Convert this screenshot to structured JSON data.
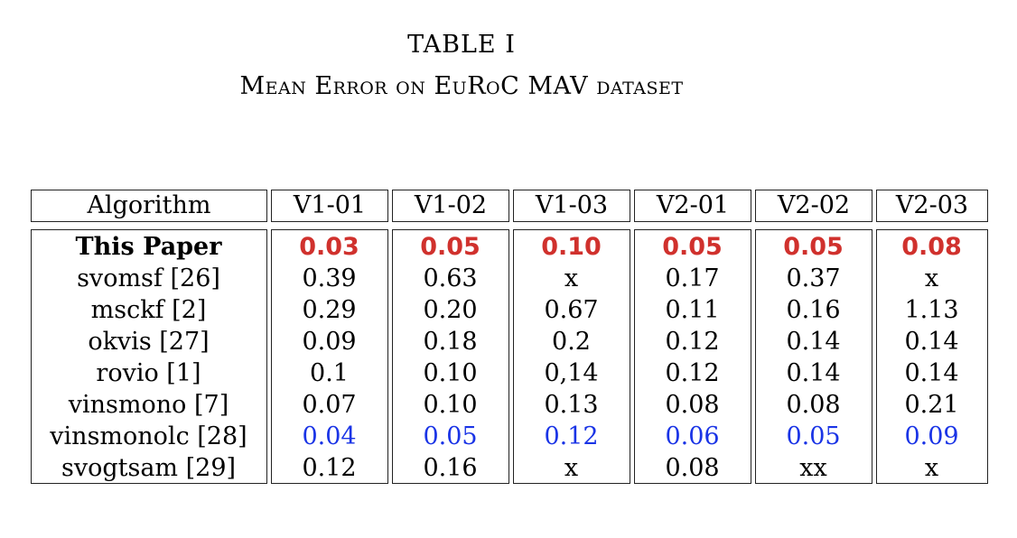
{
  "caption": {
    "label": "TABLE I",
    "title": "Mean Error on EuRoC MAV dataset"
  },
  "table": {
    "columns": [
      "Algorithm",
      "V1-01",
      "V1-02",
      "V1-03",
      "V2-01",
      "V2-02",
      "V2-03"
    ],
    "rows": [
      {
        "name": "This Paper",
        "values": [
          "0.03",
          "0.05",
          "0.10",
          "0.05",
          "0.05",
          "0.08"
        ],
        "style": "best"
      },
      {
        "name": "svomsf [26]",
        "values": [
          "0.39",
          "0.63",
          "x",
          "0.17",
          "0.37",
          "x"
        ],
        "style": "normal"
      },
      {
        "name": "msckf [2]",
        "values": [
          "0.29",
          "0.20",
          "0.67",
          "0.11",
          "0.16",
          "1.13"
        ],
        "style": "normal"
      },
      {
        "name": "okvis [27]",
        "values": [
          "0.09",
          "0.18",
          "0.2",
          "0.12",
          "0.14",
          "0.14"
        ],
        "style": "normal"
      },
      {
        "name": "rovio [1]",
        "values": [
          "0.1",
          "0.10",
          "0,14",
          "0.12",
          "0.14",
          "0.14"
        ],
        "style": "normal"
      },
      {
        "name": "vinsmono [7]",
        "values": [
          "0.07",
          "0.10",
          "0.13",
          "0.08",
          "0.08",
          "0.21"
        ],
        "style": "normal"
      },
      {
        "name": "vinsmonolc [28]",
        "values": [
          "0.04",
          "0.05",
          "0.12",
          "0.06",
          "0.05",
          "0.09"
        ],
        "style": "second"
      },
      {
        "name": "svogtsam [29]",
        "values": [
          "0.12",
          "0.16",
          "x",
          "0.08",
          "xx",
          "x"
        ],
        "style": "normal"
      }
    ]
  },
  "colors": {
    "best": "#d0312d",
    "second": "#1a34e6"
  }
}
